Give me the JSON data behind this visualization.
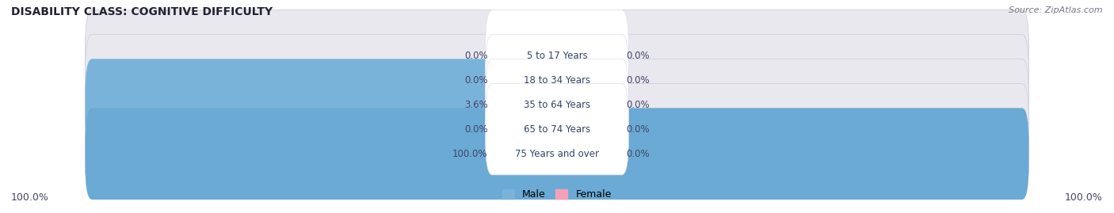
{
  "title": "DISABILITY CLASS: COGNITIVE DIFFICULTY",
  "source": "Source: ZipAtlas.com",
  "categories": [
    "5 to 17 Years",
    "18 to 34 Years",
    "35 to 64 Years",
    "65 to 74 Years",
    "75 Years and over"
  ],
  "male_values": [
    0.0,
    0.0,
    3.6,
    0.0,
    100.0
  ],
  "female_values": [
    0.0,
    0.0,
    0.0,
    0.0,
    0.0
  ],
  "male_color": "#7ab3d9",
  "female_color": "#f4a0b8",
  "male_full_color": "#6aaad4",
  "bar_bg_color": "#e8e8ee",
  "bar_bg_color2": "#d8d8e2",
  "label_bg_color": "#ffffff",
  "bg_color": "#ffffff",
  "row_bg_even": "#f0f0f5",
  "row_bg_odd": "#ffffff",
  "axis_max": 100.0,
  "bottom_left_label": "100.0%",
  "bottom_right_label": "100.0%",
  "legend_male": "Male",
  "legend_female": "Female",
  "pct_left_labels": [
    "0.0%",
    "0.0%",
    "3.6%",
    "0.0%",
    "100.0%"
  ],
  "pct_right_labels": [
    "0.0%",
    "0.0%",
    "0.0%",
    "0.0%",
    "0.0%"
  ]
}
